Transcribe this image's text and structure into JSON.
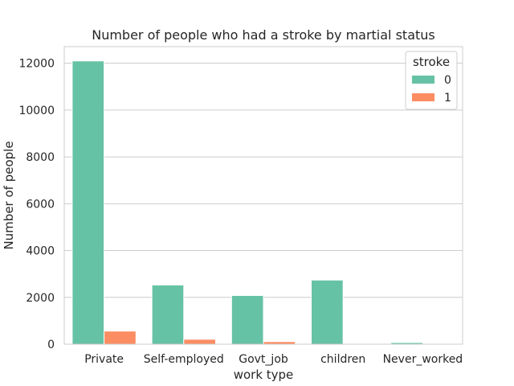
{
  "chart_data": {
    "type": "bar",
    "title": "Number of people who had a stroke by martial status",
    "xlabel": "work type",
    "ylabel": "Number of people",
    "categories": [
      "Private",
      "Self-employed",
      "Govt_job",
      "children",
      "Never_worked"
    ],
    "series": [
      {
        "name": "0",
        "values": [
          12100,
          2530,
          2080,
          2740,
          70
        ],
        "color": "#66c2a5"
      },
      {
        "name": "1",
        "values": [
          560,
          210,
          110,
          10,
          2
        ],
        "color": "#fc8d62"
      }
    ],
    "yticks": [
      0,
      2000,
      4000,
      6000,
      8000,
      10000,
      12000
    ],
    "ylim": [
      0,
      12710
    ],
    "grid": true,
    "legend": {
      "title": "stroke",
      "placement": "top-right"
    }
  }
}
